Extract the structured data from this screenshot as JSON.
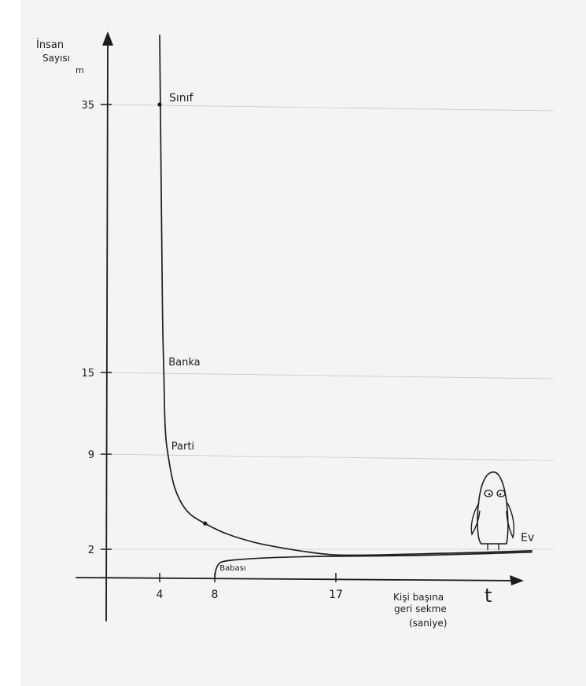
{
  "chart_data": {
    "type": "line",
    "title": "",
    "ylabel_lines": [
      "İnsan",
      "Sayısı",
      "m"
    ],
    "xlabel_lines": [
      "Kişi başına",
      "geri sekme",
      "(saniye)"
    ],
    "x_axis_symbol": "t",
    "x_ticks": [
      4,
      8,
      17
    ],
    "y_ticks": [
      2,
      9,
      15,
      35
    ],
    "grid": "horizontal",
    "series": [
      {
        "x": [
          4,
          4.05,
          4.2,
          4.3,
          4.4,
          4.6,
          5.1,
          6,
          7.3,
          9,
          11,
          13,
          15,
          17,
          20,
          24,
          28,
          31
        ],
        "y": [
          44,
          35,
          20,
          15,
          11,
          9,
          6.5,
          4.8,
          3.9,
          3.1,
          2.5,
          2.1,
          1.8,
          1.6,
          1.6,
          1.7,
          1.8,
          1.9
        ]
      },
      {
        "x": [
          8,
          8.05,
          8.2,
          8.5,
          9.5,
          12,
          16,
          22,
          28,
          31
        ],
        "y": [
          -0.05,
          0.4,
          0.8,
          1.1,
          1.25,
          1.4,
          1.5,
          1.55,
          1.7,
          1.8
        ]
      }
    ],
    "points": [
      {
        "x": 4,
        "y": 35,
        "label": "Sınıf"
      },
      {
        "x": 4.3,
        "y": 15,
        "label": "Banka"
      },
      {
        "x": 4.5,
        "y": 9,
        "label": "Parti"
      },
      {
        "x": 7.3,
        "y": 3.9,
        "label": ""
      },
      {
        "x": 8.6,
        "y": 1.1,
        "label": "Babası"
      },
      {
        "x": 31,
        "y": 2.5,
        "label": "Ev"
      }
    ],
    "illustration": "penguin-ghost"
  }
}
